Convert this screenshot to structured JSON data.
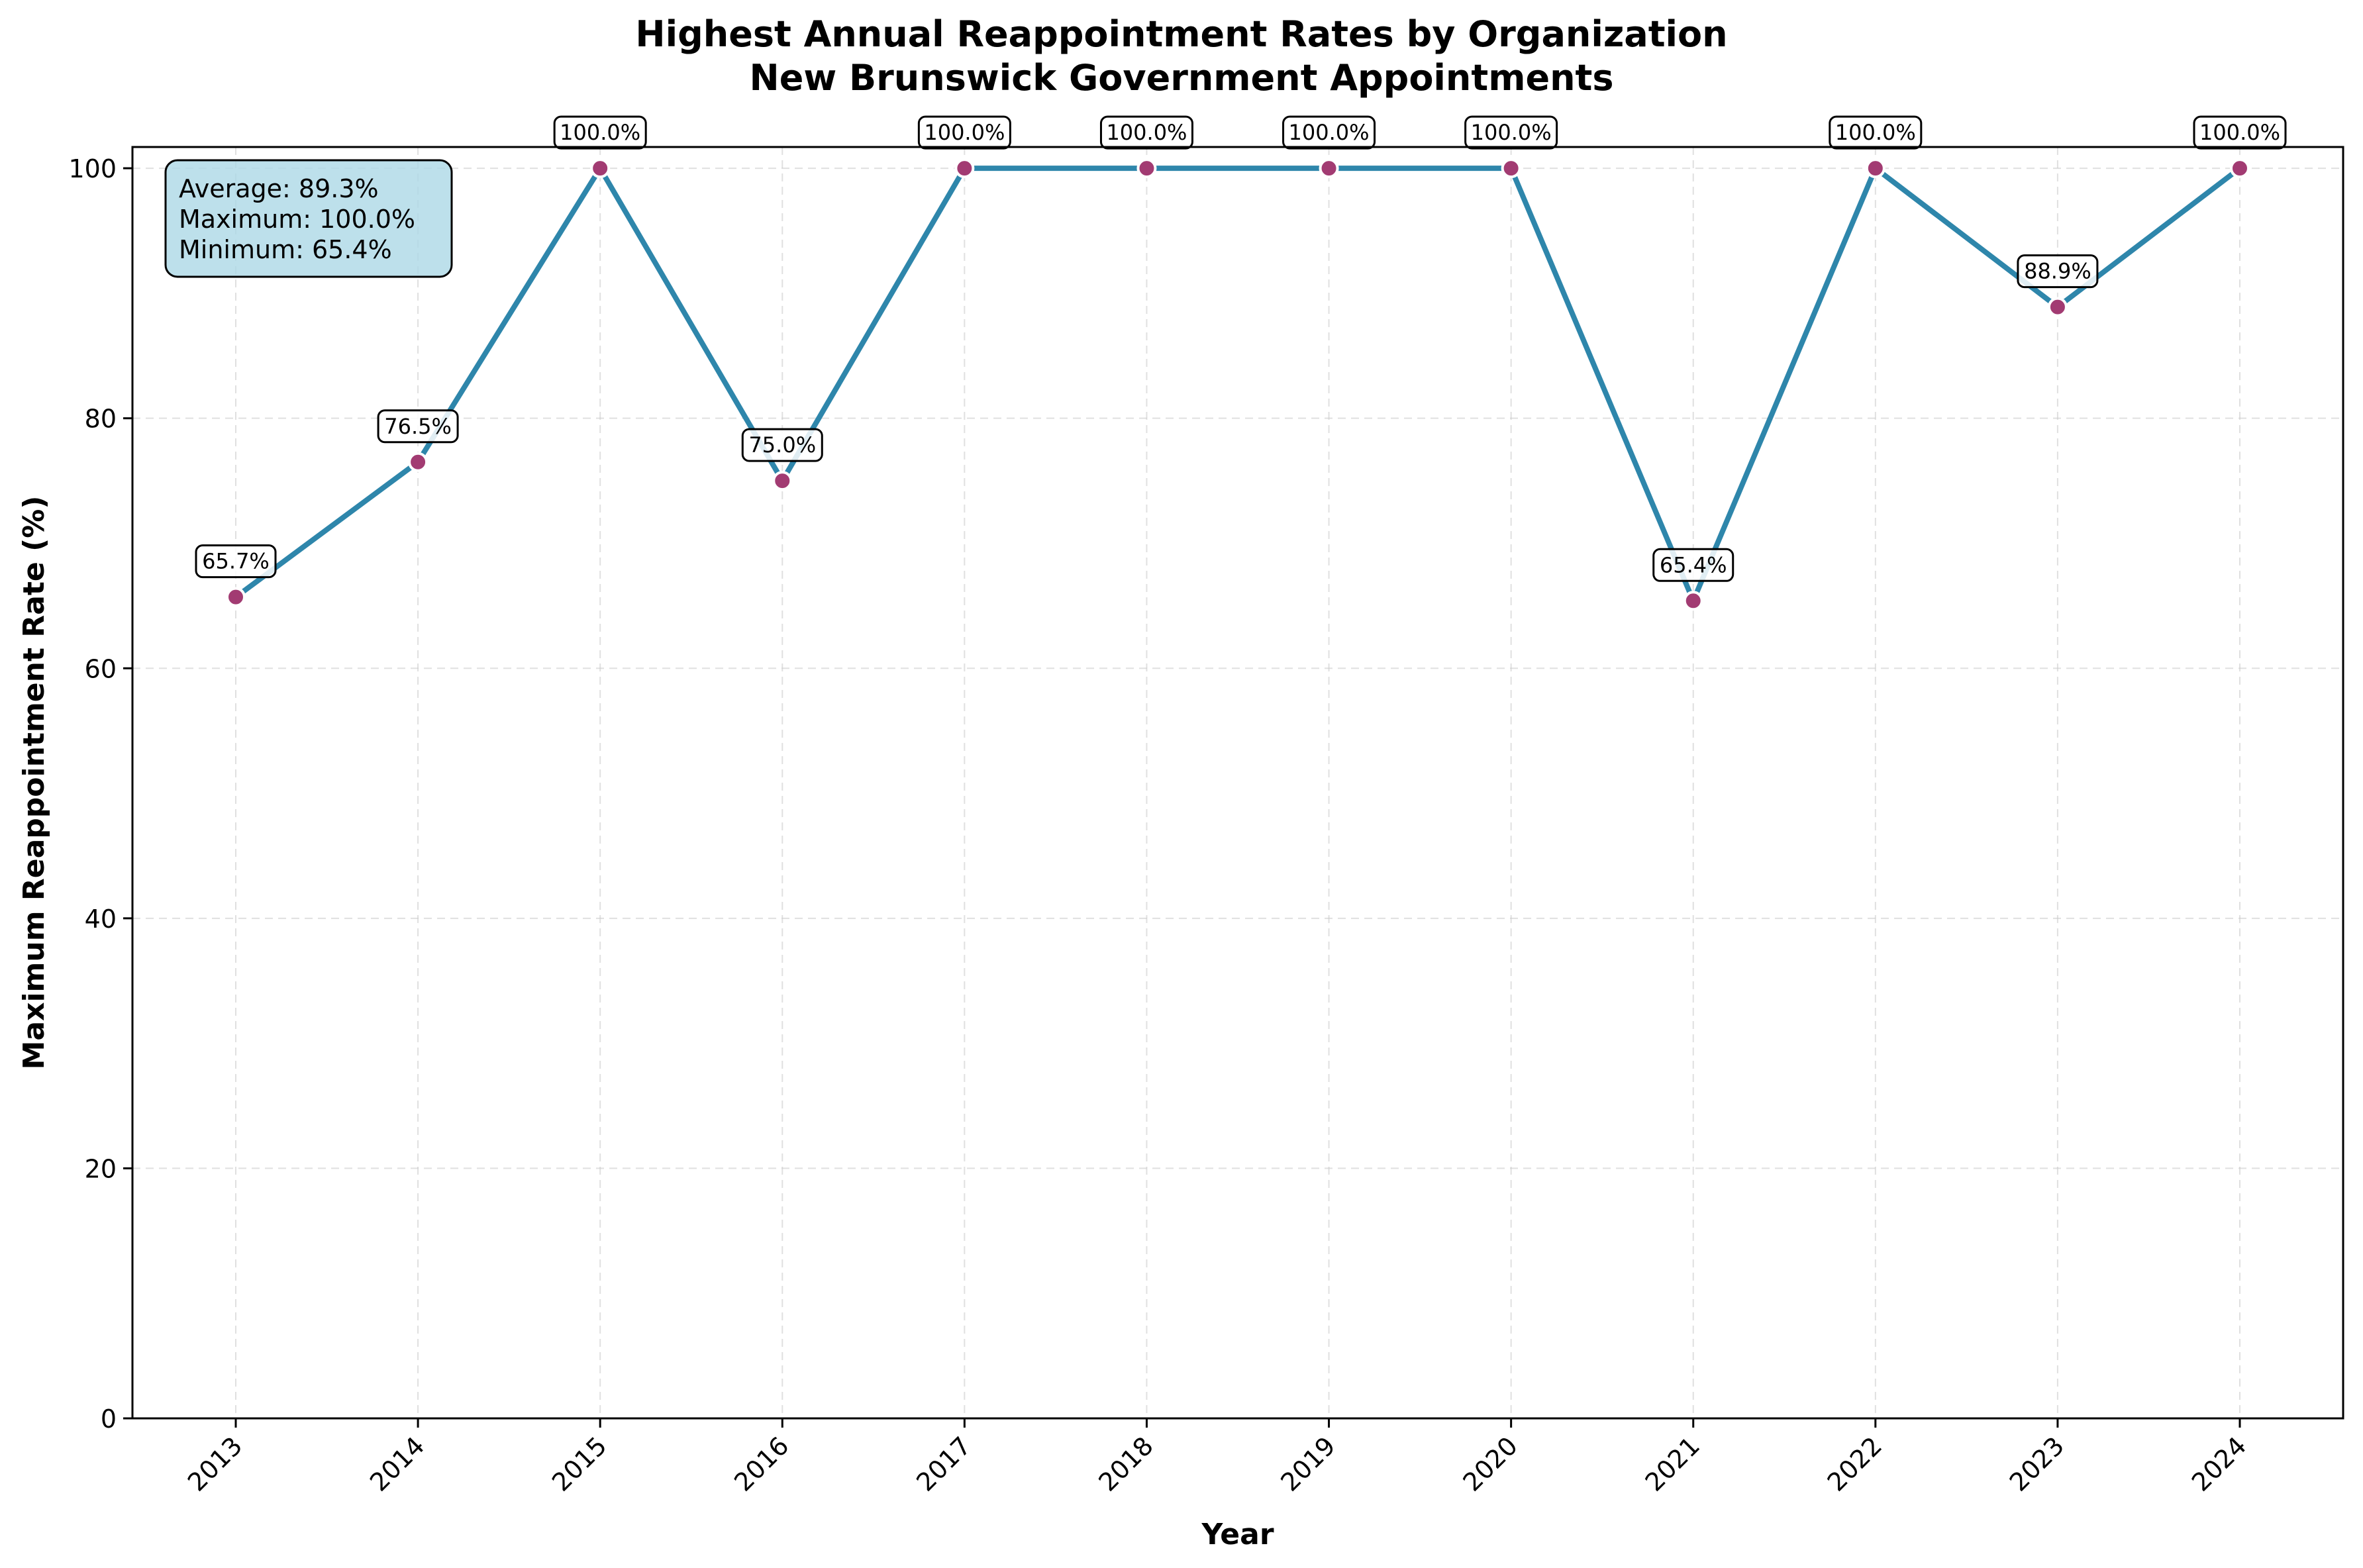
{
  "chart_data": {
    "type": "line",
    "title": "Highest Annual Reappointment Rates by Organization",
    "subtitle": "New Brunswick Government Appointments",
    "xlabel": "Year",
    "ylabel": "Maximum Reappointment Rate (%)",
    "x": [
      "2013",
      "2014",
      "2015",
      "2016",
      "2017",
      "2018",
      "2019",
      "2020",
      "2021",
      "2022",
      "2023",
      "2024"
    ],
    "values": [
      65.7,
      76.5,
      100.0,
      75.0,
      100.0,
      100.0,
      100.0,
      100.0,
      65.4,
      100.0,
      88.9,
      100.0
    ],
    "data_labels": [
      "65.7%",
      "76.5%",
      "100.0%",
      "75.0%",
      "100.0%",
      "100.0%",
      "100.0%",
      "100.0%",
      "65.4%",
      "100.0%",
      "88.9%",
      "100.0%"
    ],
    "ylim": [
      0,
      101.7
    ],
    "yticks": [
      0,
      20,
      40,
      60,
      80,
      100
    ],
    "grid": true,
    "line_color": "#2e86ab",
    "marker_color": "#a23b72",
    "stats_box": {
      "lines": [
        "Average: 89.3%",
        "Maximum: 100.0%",
        "Minimum: 65.4%"
      ],
      "background": "#add8e6"
    }
  }
}
